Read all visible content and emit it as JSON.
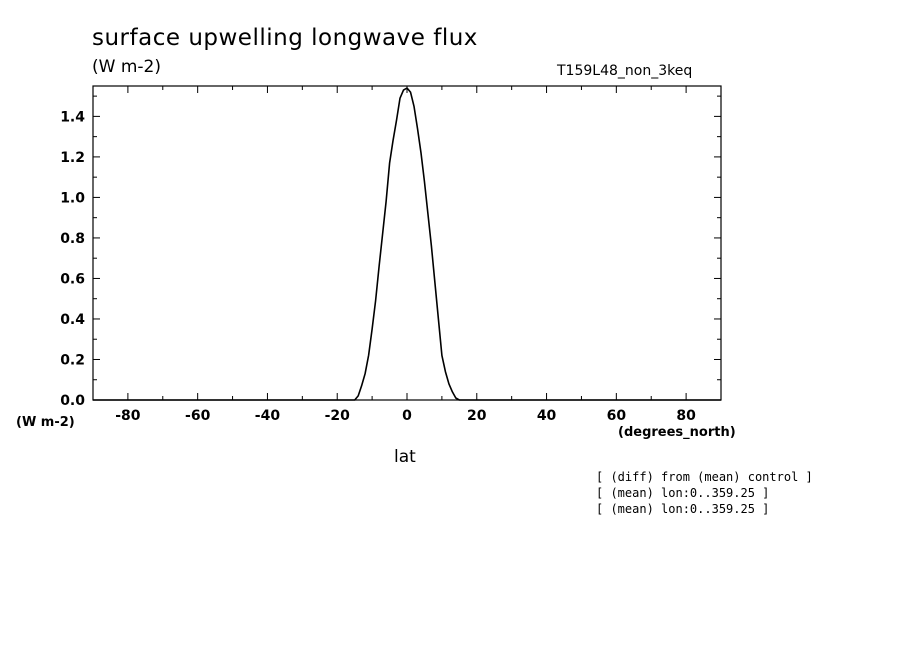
{
  "chart_data": {
    "type": "line",
    "title": "surface upwelling longwave flux",
    "subtitle": "(W m-2)",
    "run_label": "T159L48_non_3keq",
    "xlabel": "lat",
    "xunits": "(degrees_north)",
    "yunits": "(W m-2)",
    "xlim": [
      -90,
      90
    ],
    "ylim": [
      0,
      1.55
    ],
    "xticks": [
      -80,
      -60,
      -40,
      -20,
      0,
      20,
      40,
      60,
      80
    ],
    "xtick_labels": [
      "-80",
      "-60",
      "-40",
      "-20",
      "0",
      "20",
      "40",
      "60",
      "80"
    ],
    "yticks": [
      0.0,
      0.2,
      0.4,
      0.6,
      0.8,
      1.0,
      1.2,
      1.4
    ],
    "ytick_labels": [
      "0.0",
      "0.2",
      "0.4",
      "0.6",
      "0.8",
      "1.0",
      "1.2",
      "1.4"
    ],
    "grid": false,
    "series": [
      {
        "x": [
          -90,
          -80,
          -60,
          -40,
          -20,
          -15,
          -14,
          -13,
          -12,
          -11,
          -10,
          -9,
          -8,
          -7,
          -6,
          -5,
          -4,
          -3,
          -2,
          -1,
          0,
          1,
          2,
          3,
          4,
          5,
          6,
          7,
          8,
          9,
          10,
          11,
          12,
          13,
          14,
          15,
          20,
          40,
          60,
          80,
          90
        ],
        "y": [
          0,
          0,
          0,
          0,
          0,
          0,
          0.02,
          0.07,
          0.13,
          0.22,
          0.35,
          0.49,
          0.66,
          0.82,
          0.98,
          1.17,
          1.28,
          1.38,
          1.49,
          1.53,
          1.54,
          1.52,
          1.45,
          1.34,
          1.22,
          1.08,
          0.92,
          0.76,
          0.58,
          0.4,
          0.22,
          0.14,
          0.08,
          0.04,
          0.01,
          0,
          0,
          0,
          0,
          0,
          0
        ]
      }
    ],
    "annotations": [
      "[ (diff) from (mean) control ]",
      "[ (mean) lon:0..359.25 ]",
      "[ (mean) lon:0..359.25 ]"
    ]
  }
}
